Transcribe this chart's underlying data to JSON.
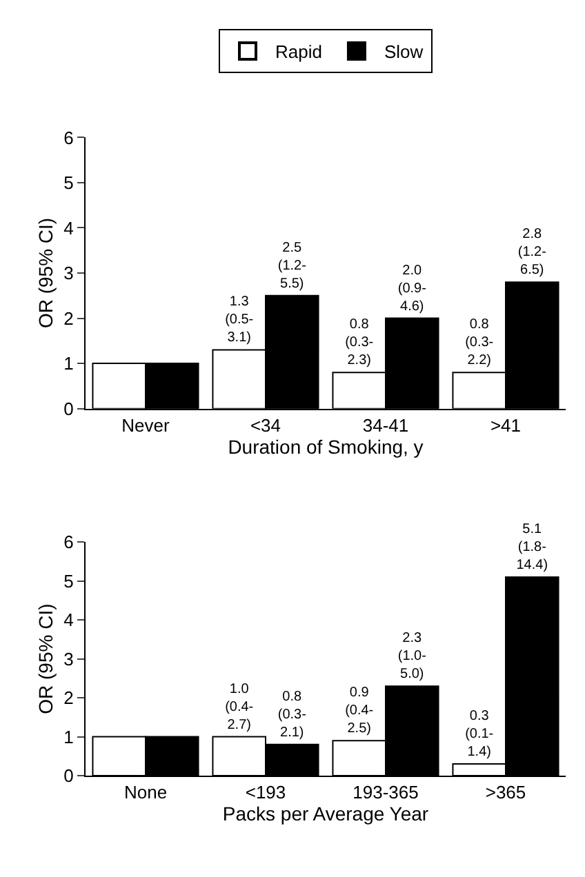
{
  "chart_data": [
    {
      "type": "bar",
      "categories": [
        "Never",
        "<34",
        "34-41",
        ">41"
      ],
      "xlabel": "Duration of Smoking, y",
      "ylabel": "OR (95% CI)",
      "ylim": [
        0,
        6
      ],
      "yticks": [
        0,
        1,
        2,
        3,
        4,
        5,
        6
      ],
      "legend": "top",
      "series": [
        {
          "name": "Rapid",
          "color": "#ffffff",
          "values": [
            1,
            1.3,
            0.8,
            0.8
          ],
          "value_labels": [
            null,
            "1.3\n(0.5-\n3.1)",
            "0.8\n(0.3-\n2.3)",
            "0.8\n(0.3-\n2.2)"
          ]
        },
        {
          "name": "Slow",
          "color": "#000000",
          "values": [
            1,
            2.5,
            2.0,
            2.8
          ],
          "value_labels": [
            null,
            "2.5\n(1.2-\n5.5)",
            "2.0\n(0.9-\n4.6)",
            "2.8\n(1.2-\n6.5)"
          ]
        }
      ]
    },
    {
      "type": "bar",
      "categories": [
        "None",
        "<193",
        "193-365",
        ">365"
      ],
      "xlabel": "Packs per Average Year",
      "ylabel": "OR (95% CI)",
      "ylim": [
        0,
        6
      ],
      "yticks": [
        0,
        1,
        2,
        3,
        4,
        5,
        6
      ],
      "series": [
        {
          "color": "#ffffff",
          "values": [
            1,
            1.0,
            0.9,
            0.3
          ],
          "value_labels": [
            null,
            "1.0\n(0.4-\n2.7)",
            "0.9\n(0.4-\n2.5)",
            "0.3\n(0.1-\n1.4)"
          ]
        },
        {
          "color": "#000000",
          "values": [
            1,
            0.8,
            2.3,
            5.1
          ],
          "value_labels": [
            null,
            "0.8\n(0.3-\n2.1)",
            "2.3\n(1.0-\n5.0)",
            "5.1\n(1.8-\n14.4)"
          ]
        }
      ]
    }
  ]
}
